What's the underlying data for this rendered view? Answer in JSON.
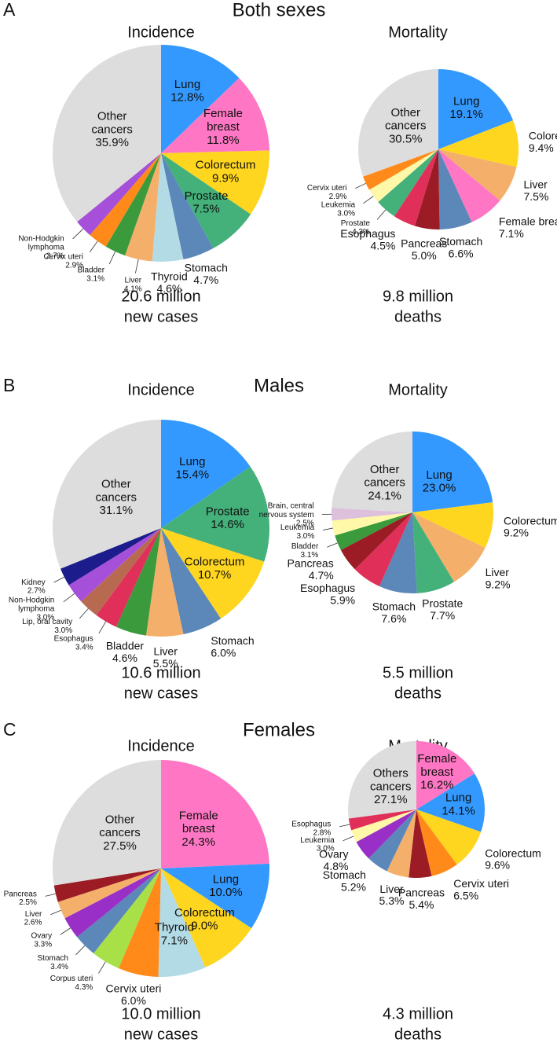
{
  "panels": [
    {
      "letter": "A",
      "title": "Both sexes"
    },
    {
      "letter": "B",
      "title": "Males"
    },
    {
      "letter": "C",
      "title": "Females"
    }
  ],
  "chart_data": [
    {
      "type": "pie",
      "title": "Incidence",
      "categories": [
        "Lung",
        "Female breast",
        "Colorectum",
        "Prostate",
        "Stomach",
        "Thyroid",
        "Liver",
        "Bladder",
        "Cervix uteri",
        "Non-Hodgkin lymphoma",
        "Other cancers"
      ],
      "values": [
        12.8,
        11.8,
        9.9,
        7.5,
        4.7,
        4.6,
        4.1,
        3.1,
        2.9,
        2.7,
        35.9
      ],
      "value_labels": [
        "12.8%",
        "11.8%",
        "9.9%",
        "7.5%",
        "4.7%",
        "4.6%",
        "4.1%",
        "3.1%",
        "2.9%",
        "2.7%",
        "35.9%"
      ],
      "colors": [
        "#3399ff",
        "#ff77c4",
        "#ffd61f",
        "#44b07a",
        "#5b88b8",
        "#b3dbe6",
        "#f4b06a",
        "#3b9a3b",
        "#ff8a1a",
        "#a64fd8",
        "#dddddd"
      ],
      "caption": [
        "20.6 million",
        "new cases"
      ]
    },
    {
      "type": "pie",
      "title": "Mortality",
      "categories": [
        "Lung",
        "Colorectum",
        "Liver",
        "Female breast",
        "Stomach",
        "Pancreas",
        "Esophagus",
        "Prostate",
        "Leukemia",
        "Cervix uteri",
        "Other cancers"
      ],
      "values": [
        19.1,
        9.4,
        7.5,
        7.1,
        6.6,
        5.0,
        4.5,
        4.3,
        3.0,
        2.9,
        30.5
      ],
      "value_labels": [
        "19.1%",
        "9.4%",
        "7.5%",
        "7.1%",
        "6.6%",
        "5.0%",
        "4.5%",
        "4.3%",
        "3.0%",
        "2.9%",
        "30.5%"
      ],
      "colors": [
        "#3399ff",
        "#ffd61f",
        "#f4b06a",
        "#ff77c4",
        "#5b88b8",
        "#9b1c24",
        "#e0305a",
        "#44b07a",
        "#fff8a8",
        "#ff8a1a",
        "#dddddd"
      ],
      "caption": [
        "9.8 million",
        "deaths"
      ]
    },
    {
      "type": "pie",
      "title": "Incidence",
      "categories": [
        "Lung",
        "Prostate",
        "Colorectum",
        "Stomach",
        "Liver",
        "Bladder",
        "Esophagus",
        "Lip, oral cavity",
        "Non-Hodgkin lymphoma",
        "Kidney",
        "Other cancers"
      ],
      "values": [
        15.4,
        14.6,
        10.7,
        6.0,
        5.5,
        4.6,
        3.4,
        3.0,
        3.0,
        2.7,
        31.1
      ],
      "value_labels": [
        "15.4%",
        "14.6%",
        "10.7%",
        "6.0%",
        "5.5%",
        "4.6%",
        "3.4%",
        "3.0%",
        "3.0%",
        "2.7%",
        "31.1%"
      ],
      "colors": [
        "#3399ff",
        "#44b07a",
        "#ffd61f",
        "#5b88b8",
        "#f4b06a",
        "#3b9a3b",
        "#e0305a",
        "#b86a50",
        "#a64fd8",
        "#1c1c8c",
        "#dddddd"
      ],
      "caption": [
        "10.6 million",
        "new cases"
      ]
    },
    {
      "type": "pie",
      "title": "Mortality",
      "categories": [
        "Lung",
        "Colorectum",
        "Liver",
        "Prostate",
        "Stomach",
        "Esophagus",
        "Pancreas",
        "Bladder",
        "Leukemia",
        "Brain, central nervous system",
        "Other cancers"
      ],
      "values": [
        23.0,
        9.2,
        9.2,
        7.7,
        7.6,
        5.9,
        4.7,
        3.1,
        3.0,
        2.5,
        24.1
      ],
      "value_labels": [
        "23.0%",
        "9.2%",
        "9.2%",
        "7.7%",
        "7.6%",
        "5.9%",
        "4.7%",
        "3.1%",
        "3.0%",
        "2.5%",
        "24.1%"
      ],
      "colors": [
        "#3399ff",
        "#ffd61f",
        "#f4b06a",
        "#44b07a",
        "#5b88b8",
        "#e0305a",
        "#9b1c24",
        "#3b9a3b",
        "#fff8a8",
        "#dcc0dc",
        "#dddddd"
      ],
      "caption": [
        "5.5 million",
        "deaths"
      ]
    },
    {
      "type": "pie",
      "title": "Incidence",
      "categories": [
        "Female breast",
        "Lung",
        "Colorectum",
        "Thyroid",
        "Cervix uteri",
        "Corpus uteri",
        "Stomach",
        "Ovary",
        "Liver",
        "Pancreas",
        "Other cancers"
      ],
      "values": [
        24.3,
        10.0,
        9.0,
        7.1,
        6.0,
        4.3,
        3.4,
        3.3,
        2.6,
        2.5,
        27.5
      ],
      "value_labels": [
        "24.3%",
        "10.0%",
        "9.0%",
        "7.1%",
        "6.0%",
        "4.3%",
        "3.4%",
        "3.3%",
        "2.6%",
        "2.5%",
        "27.5%"
      ],
      "colors": [
        "#ff77c4",
        "#3399ff",
        "#ffd61f",
        "#b3dbe6",
        "#ff8a1a",
        "#a8e048",
        "#5b88b8",
        "#9a2fc8",
        "#f4b06a",
        "#9b1c24",
        "#dddddd"
      ],
      "caption": [
        "10.0 million",
        "new cases"
      ]
    },
    {
      "type": "pie",
      "title": "Mortality",
      "categories": [
        "Female breast",
        "Lung",
        "Colorectum",
        "Cervix uteri",
        "Pancreas",
        "Liver",
        "Stomach",
        "Ovary",
        "Leukemia",
        "Esophagus",
        "Others cancers"
      ],
      "values": [
        16.2,
        14.1,
        9.6,
        6.5,
        5.4,
        5.3,
        5.2,
        4.8,
        3.0,
        2.8,
        27.1
      ],
      "value_labels": [
        "16.2%",
        "14.1%",
        "9.6%",
        "6.5%",
        "5.4%",
        "5.3%",
        "5.2%",
        "4.8%",
        "3.0%",
        "2.8%",
        "27.1%"
      ],
      "colors": [
        "#ff77c4",
        "#3399ff",
        "#ffd61f",
        "#ff8a1a",
        "#9b1c24",
        "#f4b06a",
        "#5b88b8",
        "#9a2fc8",
        "#fff8a8",
        "#e0305a",
        "#dddddd"
      ],
      "caption": [
        "4.3 million",
        "deaths"
      ]
    }
  ]
}
